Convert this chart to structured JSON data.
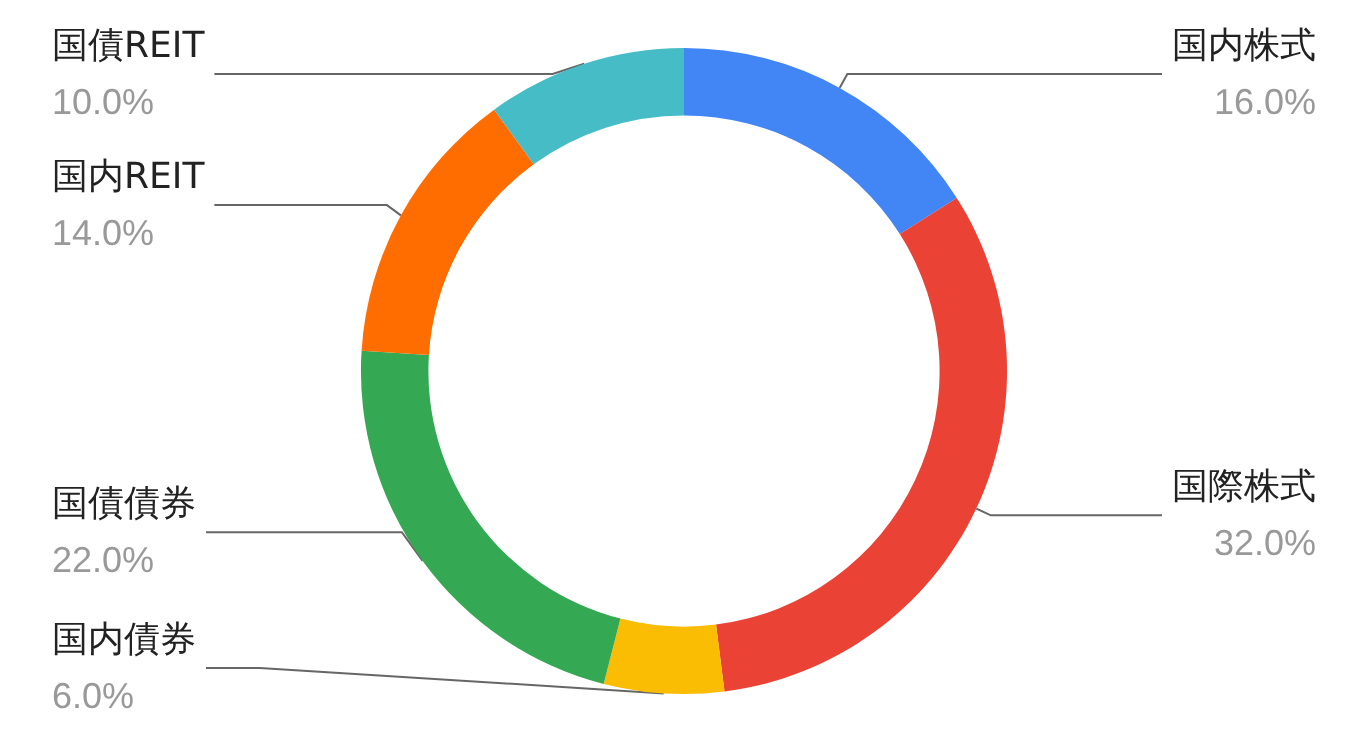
{
  "chart_data": {
    "type": "donut",
    "categories": [
      "国内株式",
      "国際株式",
      "国内債券",
      "国債債券",
      "国内REIT",
      "国債REIT"
    ],
    "values": [
      16,
      32,
      6,
      22,
      14,
      10
    ],
    "value_labels": [
      "16.0%",
      "32.0%",
      "6.0%",
      "22.0%",
      "14.0%",
      "10.0%"
    ],
    "colors": [
      "#4285f4",
      "#ea4335",
      "#fbbc04",
      "#34a853",
      "#ff6d01",
      "#46bdc6"
    ],
    "legend": false
  }
}
